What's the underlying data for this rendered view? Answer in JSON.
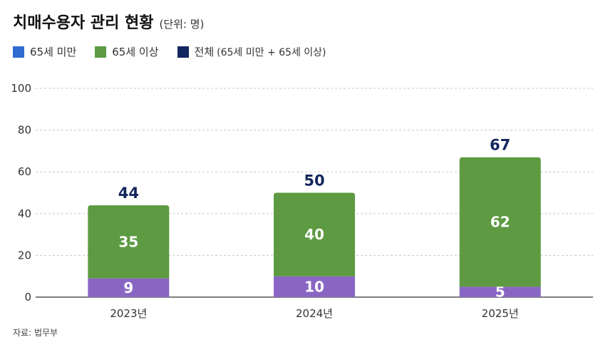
{
  "header": {
    "title": "치매수용자 관리 현황",
    "unit": "(단위: 명)"
  },
  "legend": {
    "items": [
      {
        "label": "65세 미만",
        "color": "#2f6bd1"
      },
      {
        "label": "65세 이상",
        "color": "#5d9a42"
      },
      {
        "label": "전체",
        "color": "#14265e",
        "note": "(65세 미만 + 65세 이상)"
      }
    ]
  },
  "source": "자료: 법무부",
  "chart_data": {
    "type": "bar",
    "stacked": true,
    "categories": [
      "2023년",
      "2024년",
      "2025년"
    ],
    "series": [
      {
        "name": "65세 미만",
        "values": [
          9,
          10,
          5
        ],
        "color": "#8a66c4"
      },
      {
        "name": "65세 이상",
        "values": [
          35,
          40,
          62
        ],
        "color": "#5d9a42"
      }
    ],
    "totals": [
      44,
      50,
      67
    ],
    "yticks": [
      0,
      20,
      40,
      60,
      80,
      100
    ],
    "ylim": [
      0,
      100
    ],
    "grid": true,
    "legend_position": "top-left"
  }
}
